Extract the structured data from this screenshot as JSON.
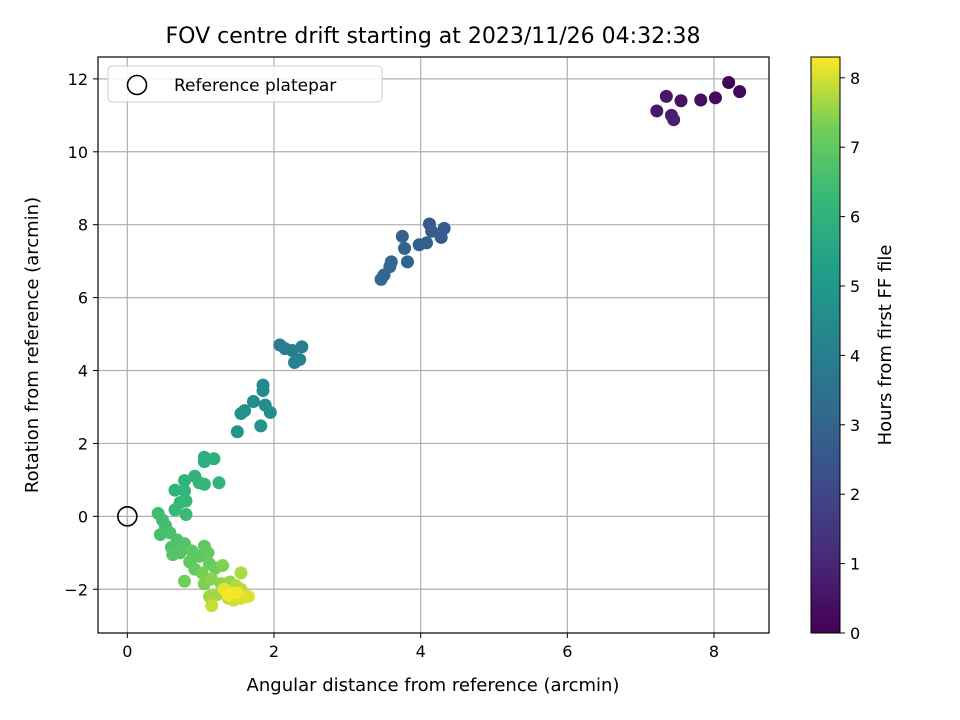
{
  "chart_data": {
    "type": "scatter",
    "title": "FOV centre drift starting at 2023/11/26 04:32:38",
    "xlabel": "Angular distance from reference (arcmin)",
    "ylabel": "Rotation from reference (arcmin)",
    "colorbar_label": "Hours from first FF file",
    "xlim": [
      -0.4,
      8.75
    ],
    "ylim": [
      -3.2,
      12.6
    ],
    "xticks": [
      0,
      2,
      4,
      6,
      8
    ],
    "yticks": [
      -2,
      0,
      2,
      4,
      6,
      8,
      10,
      12
    ],
    "cticks": [
      0,
      1,
      2,
      3,
      4,
      5,
      6,
      7,
      8
    ],
    "clim": [
      0,
      8.3
    ],
    "colormap": "viridis",
    "grid": true,
    "legend": {
      "placement": "top-left",
      "entries": [
        {
          "label": "Reference platepar",
          "marker": "open-circle"
        }
      ]
    },
    "reference_point": {
      "x": 0,
      "y": 0
    },
    "points": [
      {
        "x": 8.2,
        "y": 11.9,
        "t": 0.1
      },
      {
        "x": 8.35,
        "y": 11.65,
        "t": 0.15
      },
      {
        "x": 8.02,
        "y": 11.48,
        "t": 0.25
      },
      {
        "x": 7.82,
        "y": 11.42,
        "t": 0.35
      },
      {
        "x": 7.55,
        "y": 11.4,
        "t": 0.45
      },
      {
        "x": 7.35,
        "y": 11.52,
        "t": 0.55
      },
      {
        "x": 7.22,
        "y": 11.12,
        "t": 0.65
      },
      {
        "x": 7.42,
        "y": 11.0,
        "t": 0.75
      },
      {
        "x": 7.45,
        "y": 10.88,
        "t": 0.85
      },
      {
        "x": 4.12,
        "y": 8.02,
        "t": 2.6
      },
      {
        "x": 4.32,
        "y": 7.9,
        "t": 2.65
      },
      {
        "x": 4.28,
        "y": 7.65,
        "t": 2.7
      },
      {
        "x": 4.15,
        "y": 7.82,
        "t": 2.75
      },
      {
        "x": 4.08,
        "y": 7.5,
        "t": 2.8
      },
      {
        "x": 3.98,
        "y": 7.45,
        "t": 2.85
      },
      {
        "x": 3.75,
        "y": 7.68,
        "t": 2.9
      },
      {
        "x": 3.78,
        "y": 7.35,
        "t": 2.95
      },
      {
        "x": 3.82,
        "y": 6.98,
        "t": 3.0
      },
      {
        "x": 3.6,
        "y": 6.98,
        "t": 3.05
      },
      {
        "x": 3.58,
        "y": 6.85,
        "t": 3.1
      },
      {
        "x": 3.5,
        "y": 6.62,
        "t": 3.15
      },
      {
        "x": 3.46,
        "y": 6.5,
        "t": 3.2
      },
      {
        "x": 2.08,
        "y": 4.7,
        "t": 3.9
      },
      {
        "x": 2.15,
        "y": 4.6,
        "t": 3.95
      },
      {
        "x": 2.25,
        "y": 4.55,
        "t": 4.0
      },
      {
        "x": 2.38,
        "y": 4.65,
        "t": 4.05
      },
      {
        "x": 2.35,
        "y": 4.3,
        "t": 4.1
      },
      {
        "x": 2.28,
        "y": 4.22,
        "t": 4.15
      },
      {
        "x": 1.85,
        "y": 3.6,
        "t": 4.4
      },
      {
        "x": 1.85,
        "y": 3.45,
        "t": 4.45
      },
      {
        "x": 1.72,
        "y": 3.15,
        "t": 4.55
      },
      {
        "x": 1.88,
        "y": 3.05,
        "t": 4.6
      },
      {
        "x": 1.95,
        "y": 2.85,
        "t": 4.65
      },
      {
        "x": 1.6,
        "y": 2.9,
        "t": 4.7
      },
      {
        "x": 1.55,
        "y": 2.82,
        "t": 4.75
      },
      {
        "x": 1.82,
        "y": 2.48,
        "t": 4.8
      },
      {
        "x": 1.5,
        "y": 2.32,
        "t": 4.85
      },
      {
        "x": 1.05,
        "y": 1.62,
        "t": 5.8
      },
      {
        "x": 1.05,
        "y": 1.5,
        "t": 5.85
      },
      {
        "x": 1.18,
        "y": 1.58,
        "t": 5.9
      },
      {
        "x": 0.92,
        "y": 1.1,
        "t": 5.95
      },
      {
        "x": 0.78,
        "y": 0.98,
        "t": 6.0
      },
      {
        "x": 0.65,
        "y": 0.72,
        "t": 6.05
      },
      {
        "x": 0.78,
        "y": 0.7,
        "t": 6.1
      },
      {
        "x": 0.98,
        "y": 0.92,
        "t": 6.1
      },
      {
        "x": 1.05,
        "y": 0.88,
        "t": 6.15
      },
      {
        "x": 1.25,
        "y": 0.92,
        "t": 6.15
      },
      {
        "x": 0.72,
        "y": 0.38,
        "t": 6.2
      },
      {
        "x": 0.8,
        "y": 0.42,
        "t": 6.25
      },
      {
        "x": 0.65,
        "y": 0.18,
        "t": 6.3
      },
      {
        "x": 0.8,
        "y": 0.05,
        "t": 6.35
      },
      {
        "x": 0.42,
        "y": 0.08,
        "t": 6.4
      },
      {
        "x": 0.48,
        "y": -0.1,
        "t": 6.45
      },
      {
        "x": 0.52,
        "y": -0.25,
        "t": 6.5
      },
      {
        "x": 0.45,
        "y": -0.5,
        "t": 6.55
      },
      {
        "x": 0.58,
        "y": -0.45,
        "t": 6.6
      },
      {
        "x": 0.68,
        "y": -0.65,
        "t": 6.65
      },
      {
        "x": 0.6,
        "y": -0.85,
        "t": 6.7
      },
      {
        "x": 0.78,
        "y": -0.75,
        "t": 6.75
      },
      {
        "x": 0.72,
        "y": -1.0,
        "t": 6.8
      },
      {
        "x": 0.62,
        "y": -1.05,
        "t": 6.85
      },
      {
        "x": 0.88,
        "y": -0.95,
        "t": 6.9
      },
      {
        "x": 0.98,
        "y": -1.1,
        "t": 6.95
      },
      {
        "x": 0.85,
        "y": -1.25,
        "t": 7.0
      },
      {
        "x": 1.05,
        "y": -0.82,
        "t": 7.0
      },
      {
        "x": 1.1,
        "y": -1.0,
        "t": 7.05
      },
      {
        "x": 0.92,
        "y": -1.45,
        "t": 7.1
      },
      {
        "x": 1.12,
        "y": -1.3,
        "t": 7.15
      },
      {
        "x": 1.2,
        "y": -1.42,
        "t": 7.2
      },
      {
        "x": 0.78,
        "y": -1.78,
        "t": 7.25
      },
      {
        "x": 1.02,
        "y": -1.55,
        "t": 7.3
      },
      {
        "x": 1.05,
        "y": -1.85,
        "t": 7.35
      },
      {
        "x": 1.3,
        "y": -1.35,
        "t": 7.4
      },
      {
        "x": 1.15,
        "y": -1.72,
        "t": 7.45
      },
      {
        "x": 1.28,
        "y": -1.85,
        "t": 7.5
      },
      {
        "x": 1.4,
        "y": -1.8,
        "t": 7.55
      },
      {
        "x": 1.12,
        "y": -2.2,
        "t": 7.6
      },
      {
        "x": 1.22,
        "y": -2.15,
        "t": 7.65
      },
      {
        "x": 1.35,
        "y": -2.05,
        "t": 7.7
      },
      {
        "x": 1.55,
        "y": -1.55,
        "t": 7.7
      },
      {
        "x": 1.48,
        "y": -1.9,
        "t": 7.75
      },
      {
        "x": 1.55,
        "y": -2.0,
        "t": 7.8
      },
      {
        "x": 1.38,
        "y": -2.25,
        "t": 7.85
      },
      {
        "x": 1.15,
        "y": -2.45,
        "t": 7.9
      },
      {
        "x": 1.45,
        "y": -2.3,
        "t": 7.95
      },
      {
        "x": 1.55,
        "y": -2.25,
        "t": 8.0
      },
      {
        "x": 1.65,
        "y": -2.2,
        "t": 8.05
      },
      {
        "x": 1.42,
        "y": -2.1,
        "t": 8.1
      },
      {
        "x": 1.32,
        "y": -2.0,
        "t": 8.15
      },
      {
        "x": 1.5,
        "y": -2.1,
        "t": 8.2
      },
      {
        "x": 1.38,
        "y": -2.15,
        "t": 8.25
      }
    ]
  }
}
